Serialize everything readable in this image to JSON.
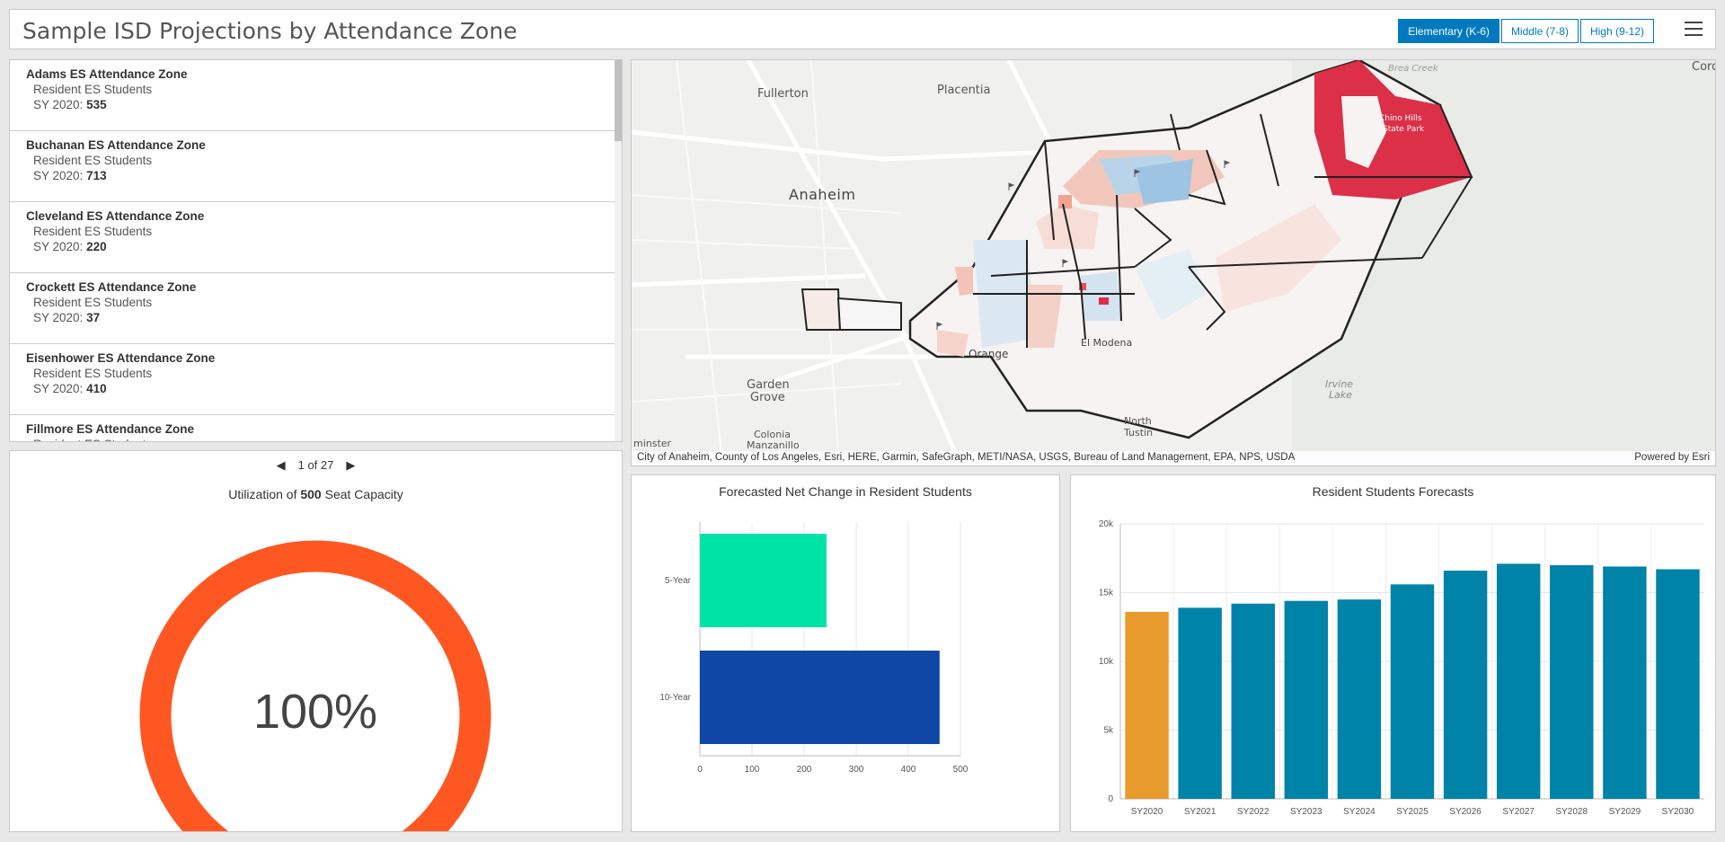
{
  "header": {
    "title": "Sample ISD Projections by Attendance Zone",
    "tabs": [
      {
        "label": "Elementary (K-6)",
        "active": true
      },
      {
        "label": "Middle (7-8)",
        "active": false
      },
      {
        "label": "High (9-12)",
        "active": false
      }
    ],
    "menu_icon": "hamburger-menu-icon"
  },
  "list": {
    "items": [
      {
        "title": "Adams ES Attendance Zone",
        "sub": "Resident ES Students",
        "label": "SY 2020:",
        "value": "535"
      },
      {
        "title": "Buchanan ES Attendance Zone",
        "sub": "Resident ES Students",
        "label": "SY 2020:",
        "value": "713"
      },
      {
        "title": "Cleveland ES Attendance Zone",
        "sub": "Resident ES Students",
        "label": "SY 2020:",
        "value": "220"
      },
      {
        "title": "Crockett ES Attendance Zone",
        "sub": "Resident ES Students",
        "label": "SY 2020:",
        "value": "37"
      },
      {
        "title": "Eisenhower ES Attendance Zone",
        "sub": "Resident ES Students",
        "label": "SY 2020:",
        "value": "410"
      },
      {
        "title": "Fillmore ES Attendance Zone",
        "sub": "Resident ES Students",
        "label": "",
        "value": ""
      }
    ]
  },
  "gauge": {
    "pager": "1 of 27",
    "title_prefix": "Utilization of",
    "title_bold": "500",
    "title_suffix": "Seat Capacity",
    "value_text": "100%",
    "fraction": 1.0,
    "color": "#ff5722"
  },
  "map": {
    "labels": {
      "fullerton": "Fullerton",
      "placentia": "Placentia",
      "anaheim": "Anaheim",
      "orange": "Orange",
      "el_modena": "El Modena",
      "garden_grove_1": "Garden",
      "garden_grove_2": "Grove",
      "north_tustin_1": "North",
      "north_tustin_2": "Tustin",
      "colonia_1": "Colonia",
      "colonia_2": "Manzanillo",
      "irvine_lake_1": "Irvine",
      "irvine_lake_2": "Lake",
      "chino_1": "Chino Hills",
      "chino_2": "State Park",
      "brea": "Brea Creek",
      "cord": "Cord",
      "minster": "minster"
    },
    "attribution": "City of Anaheim, County of Los Angeles, Esri, HERE, Garmin, SafeGraph, METI/NASA, USGS, Bureau of Land Management, EPA, NPS, USDA",
    "powered": "Powered by Esri"
  },
  "chart_data": [
    {
      "type": "bar",
      "orientation": "horizontal",
      "title": "Forecasted Net Change in Resident Students",
      "categories": [
        "5-Year",
        "10-Year"
      ],
      "values": [
        243,
        460
      ],
      "colors": [
        "#00e3a6",
        "#0e47a5"
      ],
      "xlim": [
        0,
        500
      ],
      "xticks": [
        "0",
        "100",
        "200",
        "300",
        "400",
        "500"
      ]
    },
    {
      "type": "bar",
      "title": "Resident Students Forecasts",
      "categories": [
        "SY2020",
        "SY2021",
        "SY2022",
        "SY2023",
        "SY2024",
        "SY2025",
        "SY2026",
        "SY2027",
        "SY2028",
        "SY2029",
        "SY2030"
      ],
      "values": [
        13600,
        13900,
        14200,
        14400,
        14500,
        15600,
        16600,
        17100,
        17000,
        16900,
        16700
      ],
      "colors": {
        "highlight": "#e89a2c",
        "default": "#0083a8"
      },
      "ylim": [
        0,
        20000
      ],
      "yticks": [
        "0",
        "5k",
        "10k",
        "15k",
        "20k"
      ]
    }
  ]
}
